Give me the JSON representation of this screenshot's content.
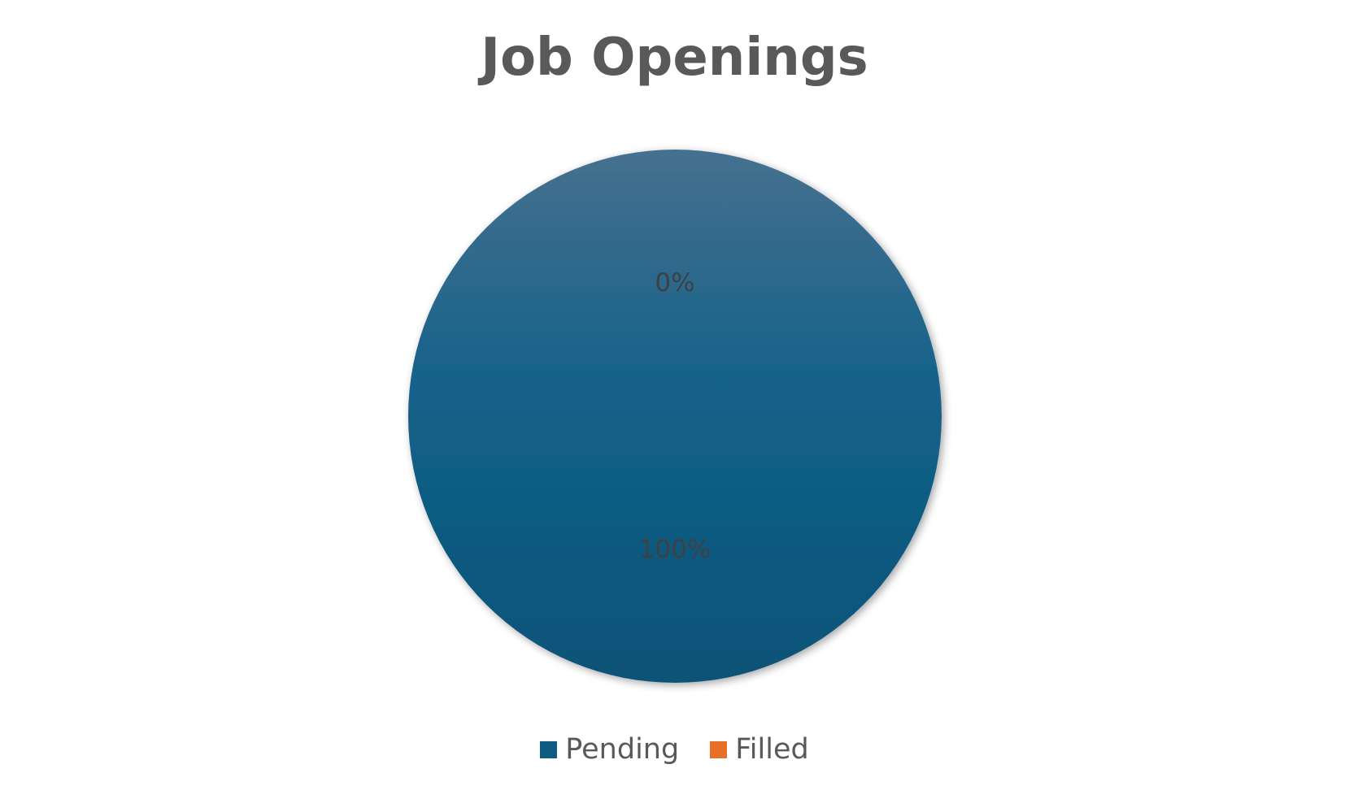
{
  "chart_data": {
    "type": "pie",
    "title": "Job Openings",
    "slices": [
      {
        "name": "Pending",
        "value": 100,
        "label": "100%",
        "color": "#0e5a80"
      },
      {
        "name": "Filled",
        "value": 0,
        "label": "0%",
        "color": "#e8702a"
      }
    ],
    "legend_position": "bottom"
  }
}
